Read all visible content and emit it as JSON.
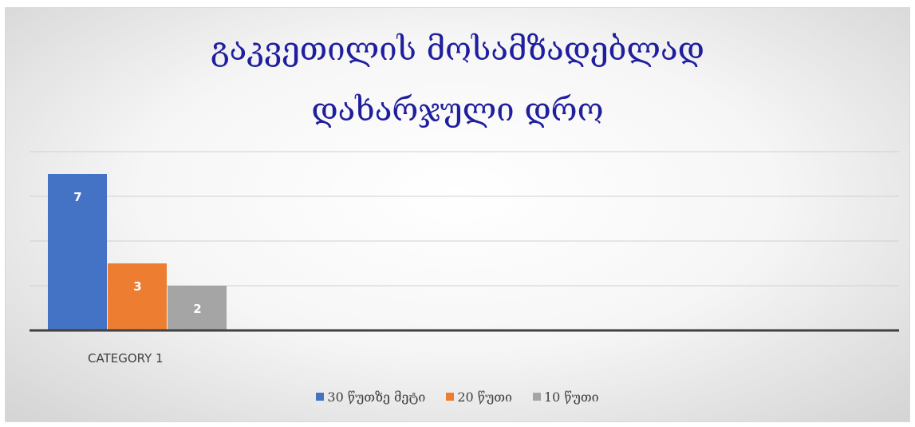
{
  "chart_data": {
    "type": "bar",
    "title_lines": [
      "გაკვეთილის მოსამზადებლად",
      "დახარჯული დრო"
    ],
    "categories": [
      "CATEGORY 1"
    ],
    "series": [
      {
        "name": "30 წუთზე მეტი",
        "values": [
          7
        ],
        "color": "#4472c4"
      },
      {
        "name": "20 წუთი",
        "values": [
          3
        ],
        "color": "#ed7d31"
      },
      {
        "name": "10 წუთი",
        "values": [
          2
        ],
        "color": "#a5a5a5"
      }
    ],
    "ylim": [
      0,
      8
    ],
    "grid": true,
    "legend": "bottom",
    "data_labels": true
  }
}
